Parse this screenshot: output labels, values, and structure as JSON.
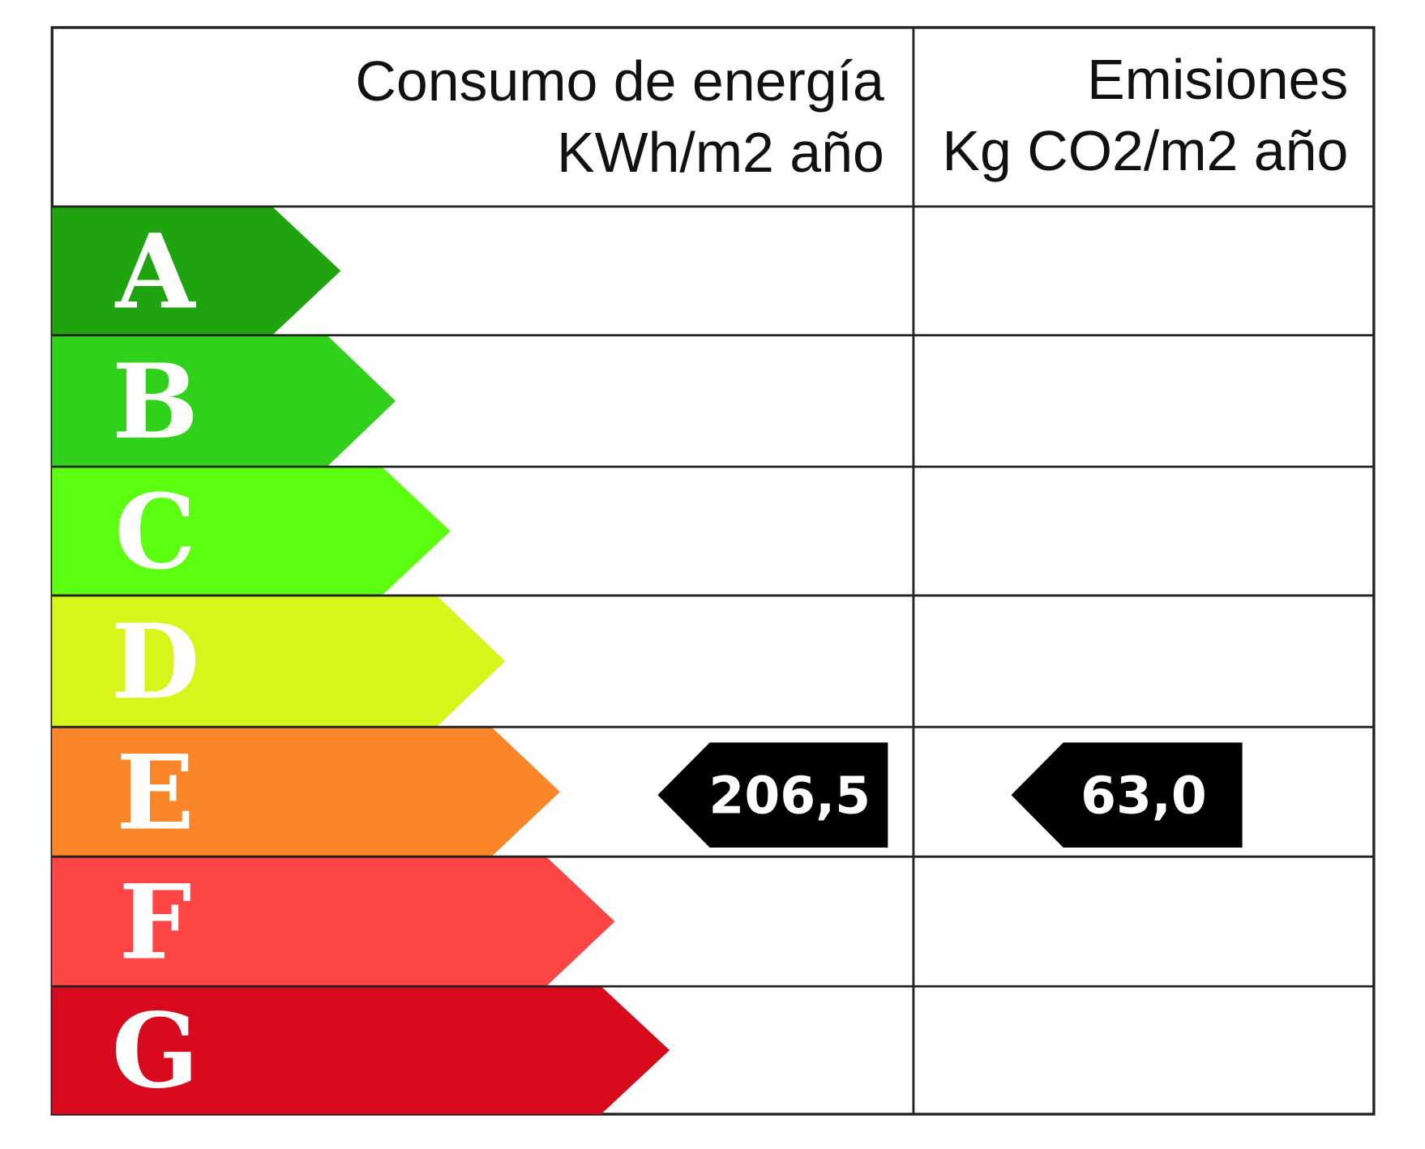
{
  "header": {
    "energy": {
      "title": "Consumo de energía",
      "unit": "KWh/m2 año"
    },
    "emissions": {
      "title": "Emisiones",
      "unit": "Kg CO2/m2 año"
    }
  },
  "rows": [
    {
      "letter": "A",
      "color": "#1fa30f"
    },
    {
      "letter": "B",
      "color": "#2fd11a"
    },
    {
      "letter": "C",
      "color": "#5cff0f"
    },
    {
      "letter": "D",
      "color": "#d7f51a"
    },
    {
      "letter": "E",
      "color": "#fb862a",
      "energy": "206,5",
      "emissions": "63,0"
    },
    {
      "letter": "F",
      "color": "#fd4545"
    },
    {
      "letter": "G",
      "color": "#d80a1e"
    }
  ]
}
